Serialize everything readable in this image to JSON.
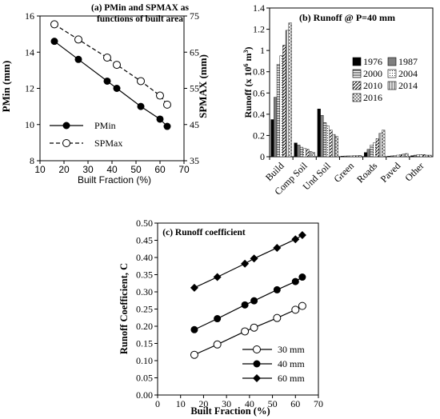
{
  "chart_data": [
    {
      "id": "a",
      "type": "line",
      "title_lines": [
        "(a) PMin and SPMAX as",
        "functions of built area"
      ],
      "xlabel": "Built Fraction (%)",
      "ylabel_left": "PMin (mm)",
      "ylabel_right": "SPMAX (mm)",
      "xlim": [
        10,
        70
      ],
      "xticks": [
        10,
        20,
        30,
        40,
        50,
        60,
        70
      ],
      "ylim_left": [
        8,
        16
      ],
      "yticks_left": [
        8,
        10,
        12,
        14,
        16
      ],
      "ylim_right": [
        35,
        75
      ],
      "yticks_right": [
        35,
        45,
        55,
        65,
        75
      ],
      "grid": false,
      "legend_position": "lower-left",
      "series": [
        {
          "name": "PMin",
          "axis": "left",
          "style": "solid",
          "marker": "filled-circle",
          "x": [
            16,
            26,
            38,
            42,
            52,
            60,
            63
          ],
          "y": [
            14.6,
            13.6,
            12.4,
            12.0,
            11.0,
            10.3,
            9.9
          ]
        },
        {
          "name": "SPMax",
          "axis": "right",
          "style": "dashed",
          "marker": "open-circle",
          "x": [
            16,
            26,
            38,
            42,
            52,
            60,
            63
          ],
          "y": [
            72.7,
            68.5,
            63.5,
            61.5,
            57.0,
            53.0,
            50.5
          ]
        }
      ]
    },
    {
      "id": "b",
      "type": "bar",
      "title": "(b) Runoff @ P=40 mm",
      "ylabel_main": "Runoff (x 10",
      "ylabel_sup": "6",
      "ylabel_tail": " m",
      "ylabel_sup2": "3",
      "ylabel_end": ")",
      "ylim": [
        0,
        1.4
      ],
      "yticks": [
        "0",
        "0.2",
        "0.4",
        "0.6",
        "0.8",
        "1",
        "1.2",
        "1.4"
      ],
      "grid": false,
      "legend_position": "right",
      "categories": [
        "Build",
        "Comp Soil",
        "Und Soil",
        "Green",
        "Roads",
        "Paved",
        "Other"
      ],
      "series": [
        {
          "name": "1976",
          "fill": "#000000",
          "pattern": "solid",
          "values": [
            0.35,
            0.13,
            0.45,
            0.005,
            0.04,
            0.005,
            0.01
          ]
        },
        {
          "name": "1987",
          "fill": "#7f7f7f",
          "pattern": "solid",
          "values": [
            0.56,
            0.11,
            0.39,
            0.007,
            0.07,
            0.008,
            0.015
          ]
        },
        {
          "name": "2000",
          "fill": "#ffffff",
          "pattern": "hlines",
          "values": [
            0.87,
            0.09,
            0.32,
            0.008,
            0.11,
            0.012,
            0.02
          ]
        },
        {
          "name": "2004",
          "fill": "#ffffff",
          "pattern": "dots",
          "values": [
            0.95,
            0.08,
            0.29,
            0.008,
            0.13,
            0.015,
            0.02
          ]
        },
        {
          "name": "2010",
          "fill": "#ffffff",
          "pattern": "diag",
          "values": [
            1.05,
            0.07,
            0.25,
            0.01,
            0.17,
            0.02,
            0.02
          ]
        },
        {
          "name": "2014",
          "fill": "#ffffff",
          "pattern": "vlines",
          "values": [
            1.19,
            0.05,
            0.21,
            0.01,
            0.22,
            0.025,
            0.015
          ]
        },
        {
          "name": "2016",
          "fill": "#ffffff",
          "pattern": "cross",
          "values": [
            1.26,
            0.04,
            0.19,
            0.012,
            0.25,
            0.03,
            0.015
          ]
        }
      ]
    },
    {
      "id": "c",
      "type": "line",
      "title": "(c) Runoff coefficient",
      "xlabel": "Built Fraction (%)",
      "ylabel": "Runoff Coefficient, C",
      "xlim": [
        0,
        70
      ],
      "xticks": [
        0,
        10,
        20,
        30,
        40,
        50,
        60,
        70
      ],
      "ylim": [
        0,
        0.5
      ],
      "yticks": [
        "0.00",
        "0.05",
        "0.10",
        "0.15",
        "0.20",
        "0.25",
        "0.30",
        "0.35",
        "0.40",
        "0.45",
        "0.50"
      ],
      "grid": false,
      "legend_position": "lower-right",
      "series": [
        {
          "name": "30 mm",
          "marker": "open-circle",
          "x": [
            16,
            26,
            38,
            42,
            52,
            60,
            63
          ],
          "y": [
            0.117,
            0.147,
            0.185,
            0.196,
            0.224,
            0.248,
            0.259
          ]
        },
        {
          "name": "40 mm",
          "marker": "filled-circle",
          "x": [
            16,
            26,
            38,
            42,
            52,
            60,
            63
          ],
          "y": [
            0.19,
            0.222,
            0.262,
            0.274,
            0.306,
            0.33,
            0.343
          ]
        },
        {
          "name": "60 mm",
          "marker": "filled-diamond",
          "x": [
            16,
            26,
            38,
            42,
            52,
            60,
            63
          ],
          "y": [
            0.312,
            0.343,
            0.382,
            0.397,
            0.428,
            0.453,
            0.465
          ]
        }
      ]
    }
  ]
}
